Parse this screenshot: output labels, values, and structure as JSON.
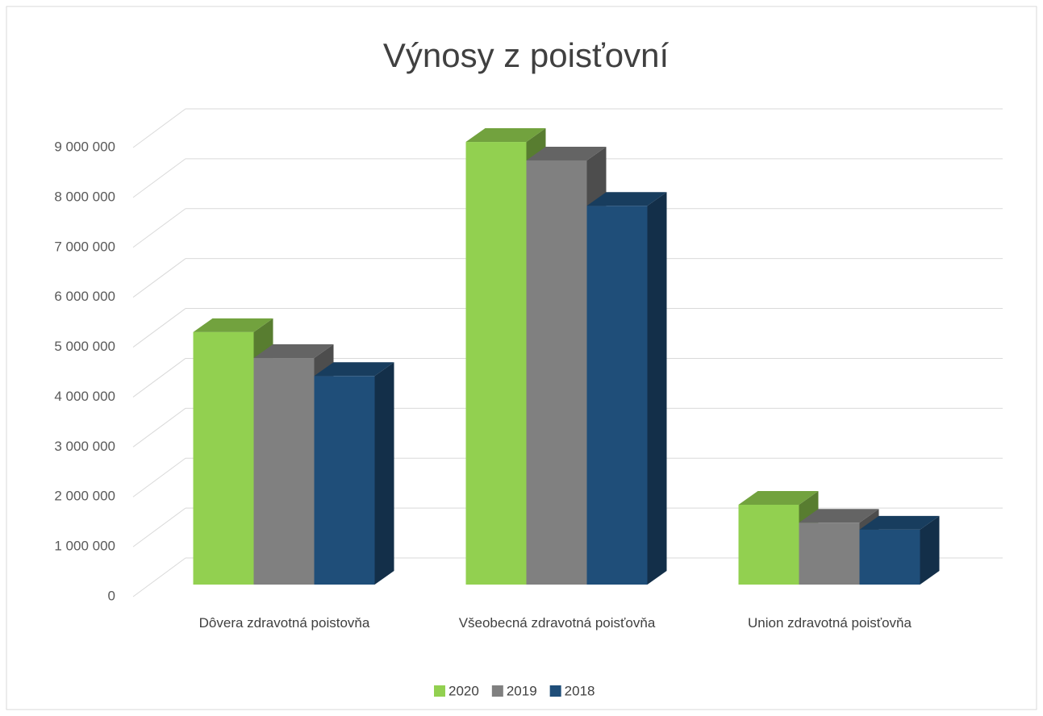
{
  "chart_data": {
    "type": "bar3d",
    "title": "Výnosy z poisťovní",
    "categories": [
      "Dôvera zdravotná poistovňa",
      "Všeobecná zdravotná poisťovňa",
      "Union zdravotná poisťovňa"
    ],
    "series": [
      {
        "name": "2020",
        "color": "#92d050",
        "values": [
          5060000,
          8870000,
          1600000
        ]
      },
      {
        "name": "2019",
        "color": "#808080",
        "values": [
          4540000,
          8500000,
          1240000
        ]
      },
      {
        "name": "2018",
        "color": "#1f4e79",
        "values": [
          4180000,
          7590000,
          1100000
        ]
      }
    ],
    "ylim": [
      0,
      9000000
    ],
    "yticks": [
      {
        "value": 0,
        "label": "0"
      },
      {
        "value": 1000000,
        "label": "1 000 000"
      },
      {
        "value": 2000000,
        "label": "2 000 000"
      },
      {
        "value": 3000000,
        "label": "3 000 000"
      },
      {
        "value": 4000000,
        "label": "4 000 000"
      },
      {
        "value": 5000000,
        "label": "5 000 000"
      },
      {
        "value": 6000000,
        "label": "6 000 000"
      },
      {
        "value": 7000000,
        "label": "7 000 000"
      },
      {
        "value": 8000000,
        "label": "8 000 000"
      },
      {
        "value": 9000000,
        "label": "9 000 000"
      }
    ],
    "grid": true,
    "legend": "bottom"
  }
}
